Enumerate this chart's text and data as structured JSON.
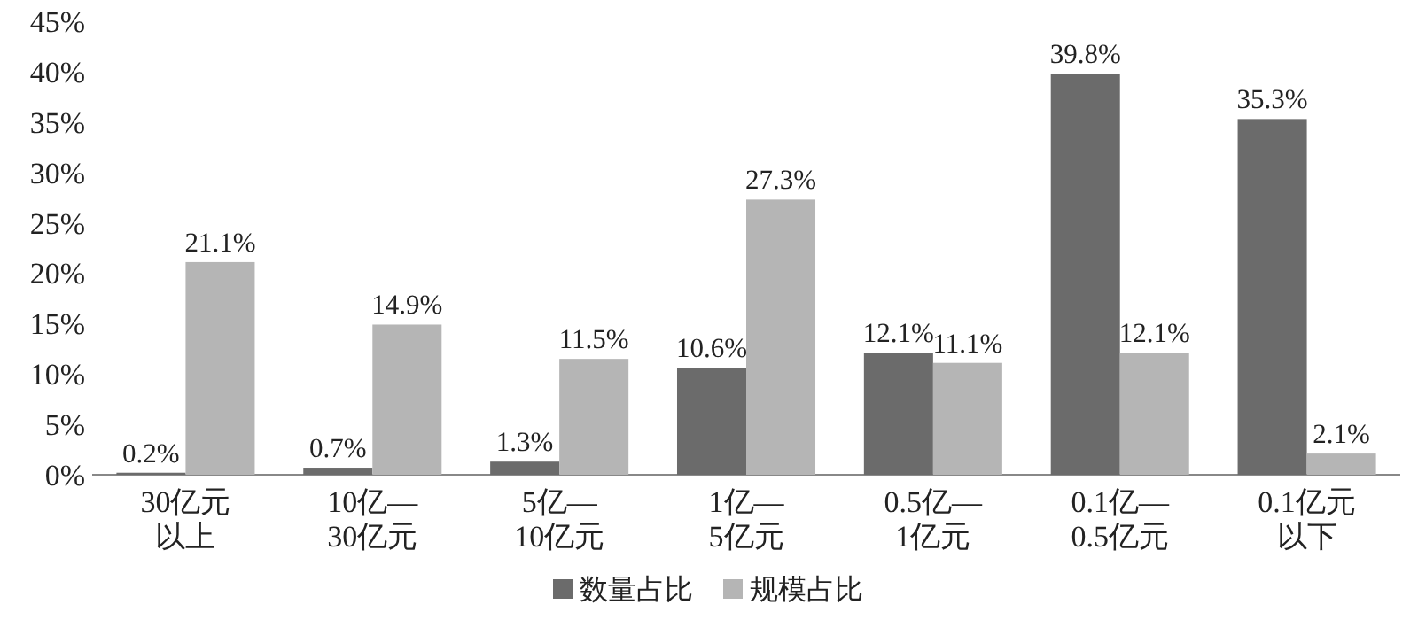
{
  "chart_data": {
    "type": "bar",
    "categories": [
      "30亿元以上",
      "10亿—30亿元",
      "5亿—10亿元",
      "1亿—5亿元",
      "0.5亿—1亿元",
      "0.1亿—0.5亿元",
      "0.1亿元以下"
    ],
    "series": [
      {
        "name": "数量占比",
        "color": "#6b6b6b",
        "values": [
          0.2,
          0.7,
          1.3,
          10.6,
          12.1,
          39.8,
          35.3
        ],
        "value_labels": [
          "0.2%",
          "0.7%",
          "1.3%",
          "10.6%",
          "12.1%",
          "39.8%",
          "35.3%"
        ]
      },
      {
        "name": "规模占比",
        "color": "#b5b5b5",
        "values": [
          21.1,
          14.9,
          11.5,
          27.3,
          11.1,
          12.1,
          2.1
        ],
        "value_labels": [
          "21.1%",
          "14.9%",
          "11.5%",
          "27.3%",
          "11.1%",
          "12.1%",
          "2.1%"
        ]
      }
    ],
    "ylim": [
      0,
      45
    ],
    "yticks": [
      {
        "value": 0,
        "label": "0%"
      },
      {
        "value": 5,
        "label": "5%"
      },
      {
        "value": 10,
        "label": "10%"
      },
      {
        "value": 15,
        "label": "15%"
      },
      {
        "value": 20,
        "label": "20%"
      },
      {
        "value": 25,
        "label": "25%"
      },
      {
        "value": 30,
        "label": "30%"
      },
      {
        "value": 35,
        "label": "35%"
      },
      {
        "value": 40,
        "label": "40%"
      },
      {
        "value": 45,
        "label": "45%"
      }
    ],
    "legend": "bottom",
    "grid": false
  }
}
